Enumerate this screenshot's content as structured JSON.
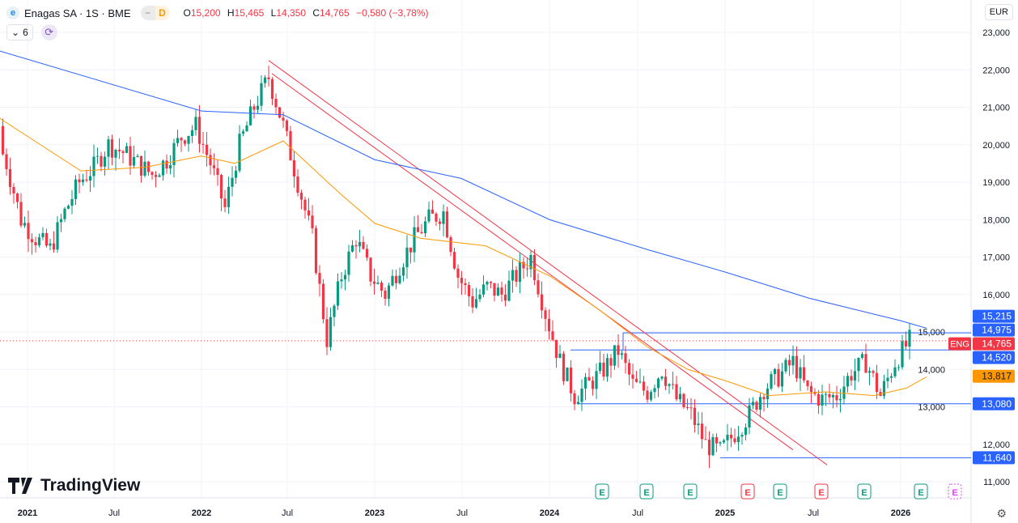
{
  "header": {
    "symbol": "Enagas SA · 1S · BME",
    "logo_letter": "e",
    "pill_minus": "−",
    "pill_d": "D",
    "o_label": "O",
    "o": "15,200",
    "h_label": "H",
    "h": "15,465",
    "l_label": "L",
    "l": "14,350",
    "c_label": "C",
    "c": "14,765",
    "change": "−0,580 (−3,78%)"
  },
  "indicators": {
    "count": "6"
  },
  "currency": "EUR",
  "brand": "TradingView",
  "colors": {
    "up": "#089981",
    "down": "#f23645",
    "ma_long": "#2962ff",
    "ma_short": "#ff9800",
    "line": "#2962ff",
    "trend": "#f23645"
  },
  "chart_data": {
    "type": "candlestick",
    "y_ticks": [
      "23,000",
      "22,000",
      "21,000",
      "20,000",
      "19,000",
      "18,000",
      "17,000",
      "16,000",
      "15,000",
      "14,000",
      "13,000",
      "12,000",
      "11,000"
    ],
    "y_range": [
      11000,
      23000
    ],
    "x_ticks": [
      "2021",
      "Jul",
      "2022",
      "Jul",
      "2023",
      "Jul",
      "2024",
      "Jul",
      "2025",
      "Jul",
      "2026"
    ],
    "monthly_closes_from_nov2020": [
      20.5,
      19.5,
      18.0,
      17.5,
      17.2,
      18.2,
      19.0,
      19.4,
      20.0,
      19.8,
      19.5,
      19.2,
      19.6,
      20.2,
      20.5,
      19.5,
      18.3,
      20.0,
      21.0,
      21.8,
      20.5,
      19.0,
      17.5,
      14.8,
      16.5,
      17.5,
      16.5,
      16.0,
      16.8,
      17.5,
      18.0,
      18.2,
      16.5,
      15.8,
      16.2,
      16.0,
      16.5,
      17.0,
      15.5,
      14.2,
      13.3,
      13.6,
      14.0,
      14.5,
      13.6,
      13.4,
      14.0,
      13.2,
      12.8,
      12.0,
      11.8,
      12.3,
      12.8,
      13.5,
      13.8,
      14.2,
      13.4,
      13.2,
      13.3,
      13.9,
      14.2,
      13.3,
      14.2,
      14.765
    ],
    "ma_long": [
      [
        0,
        22.5
      ],
      [
        249,
        20.9
      ],
      [
        350,
        20.8
      ],
      [
        463,
        19.6
      ],
      [
        570,
        19.1
      ],
      [
        679,
        18.0
      ],
      [
        800,
        17.2
      ],
      [
        896,
        16.6
      ],
      [
        1000,
        15.9
      ],
      [
        1113,
        15.3
      ],
      [
        1145,
        15.1
      ]
    ],
    "ma_short": [
      [
        0,
        20.7
      ],
      [
        50,
        20.0
      ],
      [
        100,
        19.3
      ],
      [
        180,
        19.4
      ],
      [
        249,
        19.7
      ],
      [
        290,
        19.5
      ],
      [
        350,
        20.1
      ],
      [
        420,
        18.7
      ],
      [
        463,
        17.9
      ],
      [
        520,
        17.5
      ],
      [
        600,
        17.3
      ],
      [
        679,
        16.5
      ],
      [
        740,
        15.6
      ],
      [
        800,
        14.6
      ],
      [
        850,
        14.0
      ],
      [
        896,
        13.7
      ],
      [
        950,
        13.3
      ],
      [
        1020,
        13.4
      ],
      [
        1080,
        13.3
      ],
      [
        1120,
        13.5
      ],
      [
        1145,
        13.8
      ]
    ],
    "price_labels": [
      {
        "text": "15,215",
        "v": 15215,
        "color": "#2962ff"
      },
      {
        "text": "14,975",
        "v": 14975,
        "color": "#2962ff"
      },
      {
        "text": "14,765",
        "v": 14765,
        "color": "#f23645"
      },
      {
        "text": "14,520",
        "v": 14520,
        "color": "#2962ff"
      },
      {
        "text": "13,817",
        "v": 13817,
        "color": "#ff9800"
      },
      {
        "text": "13,080",
        "v": 13080,
        "color": "#2962ff"
      },
      {
        "text": "11,640",
        "v": 11640,
        "color": "#2962ff"
      }
    ],
    "symbol_tag": "ENG",
    "earnings_marker": "E"
  }
}
